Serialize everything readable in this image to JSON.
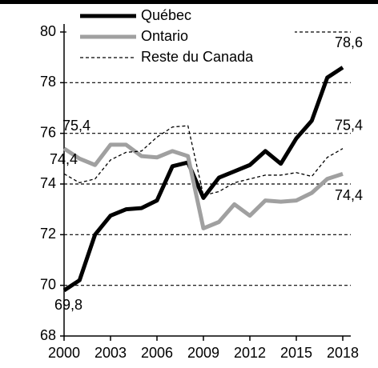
{
  "chart_data": {
    "type": "line",
    "x": [
      2000,
      2001,
      2002,
      2003,
      2004,
      2005,
      2006,
      2007,
      2008,
      2009,
      2010,
      2011,
      2012,
      2013,
      2014,
      2015,
      2016,
      2017,
      2018
    ],
    "series": [
      {
        "name": "Québec",
        "color": "#000000",
        "values": [
          69.8,
          70.2,
          72.0,
          72.75,
          73.0,
          73.05,
          73.35,
          74.7,
          74.85,
          73.45,
          74.25,
          74.5,
          74.75,
          75.3,
          74.8,
          75.8,
          76.5,
          78.2,
          78.6
        ],
        "value_labels": [
          "69,8",
          null,
          null,
          null,
          null,
          null,
          null,
          null,
          null,
          null,
          null,
          null,
          null,
          null,
          null,
          null,
          null,
          null,
          "78,6"
        ]
      },
      {
        "name": "Ontario",
        "color": "#a0a0a0",
        "values": [
          75.4,
          75.0,
          74.75,
          75.55,
          75.55,
          75.1,
          75.05,
          75.3,
          75.1,
          72.25,
          72.5,
          73.2,
          72.75,
          73.35,
          73.3,
          73.35,
          73.65,
          74.2,
          74.4
        ],
        "value_labels": [
          "75,4",
          null,
          null,
          null,
          null,
          null,
          null,
          null,
          null,
          null,
          null,
          null,
          null,
          null,
          null,
          null,
          null,
          null,
          "74,4"
        ]
      },
      {
        "name": "Reste du Canada",
        "color": "#000000",
        "dash": true,
        "values": [
          74.4,
          74.05,
          74.2,
          74.95,
          75.25,
          75.3,
          75.85,
          76.25,
          76.3,
          73.55,
          73.7,
          74.05,
          74.2,
          74.35,
          74.35,
          74.45,
          74.3,
          75.05,
          75.4
        ],
        "value_labels": [
          "74,4",
          null,
          null,
          null,
          null,
          null,
          null,
          null,
          null,
          null,
          null,
          null,
          null,
          null,
          null,
          null,
          null,
          null,
          "75,4"
        ]
      }
    ],
    "xlim": [
      2000,
      2018
    ],
    "xticks": [
      2000,
      2003,
      2006,
      2009,
      2012,
      2015,
      2018
    ],
    "ylim": [
      68,
      80
    ],
    "yticks": [
      68,
      70,
      72,
      74,
      76,
      78,
      80
    ],
    "grid": true,
    "legend": "top-left"
  }
}
